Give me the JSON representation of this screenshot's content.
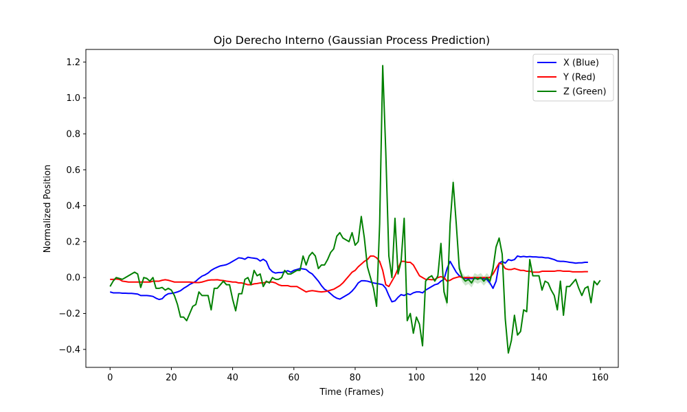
{
  "chart_data": {
    "type": "line",
    "title": "Ojo Derecho Interno (Gaussian Process Prediction)",
    "xlabel": "Time (Frames)",
    "ylabel": "Normalized Position",
    "xlim": [
      -7.9,
      165.9
    ],
    "ylim": [
      -0.5,
      1.27
    ],
    "xticks": [
      0,
      20,
      40,
      60,
      80,
      100,
      120,
      140,
      160
    ],
    "yticks": [
      -0.4,
      -0.2,
      0.0,
      0.2,
      0.4,
      0.6,
      0.8,
      1.0,
      1.2
    ],
    "ytick_labels": [
      "−0.4",
      "−0.2",
      "0.0",
      "0.2",
      "0.4",
      "0.6",
      "0.8",
      "1.0",
      "1.2"
    ],
    "grid": false,
    "legend_position": "top-right",
    "x_count": 159,
    "series": [
      {
        "name": "X (Blue)",
        "color": "#0000ff",
        "values": [
          -0.08,
          -0.085,
          -0.085,
          -0.085,
          -0.087,
          -0.087,
          -0.088,
          -0.088,
          -0.09,
          -0.092,
          -0.1,
          -0.1,
          -0.1,
          -0.102,
          -0.105,
          -0.115,
          -0.122,
          -0.118,
          -0.1,
          -0.09,
          -0.088,
          -0.085,
          -0.08,
          -0.073,
          -0.06,
          -0.05,
          -0.038,
          -0.03,
          -0.02,
          -0.005,
          0.008,
          0.015,
          0.025,
          0.04,
          0.05,
          0.058,
          0.065,
          0.068,
          0.072,
          0.08,
          0.09,
          0.1,
          0.11,
          0.108,
          0.102,
          0.113,
          0.11,
          0.108,
          0.105,
          0.092,
          0.102,
          0.09,
          0.05,
          0.032,
          0.025,
          0.028,
          0.028,
          0.032,
          0.038,
          0.03,
          0.04,
          0.045,
          0.05,
          0.048,
          0.045,
          0.03,
          0.02,
          0.0,
          -0.02,
          -0.045,
          -0.065,
          -0.075,
          -0.09,
          -0.105,
          -0.115,
          -0.12,
          -0.11,
          -0.1,
          -0.09,
          -0.075,
          -0.055,
          -0.03,
          -0.018,
          -0.018,
          -0.02,
          -0.025,
          -0.03,
          -0.033,
          -0.036,
          -0.04,
          -0.06,
          -0.1,
          -0.135,
          -0.13,
          -0.11,
          -0.095,
          -0.1,
          -0.09,
          -0.095,
          -0.085,
          -0.08,
          -0.08,
          -0.085,
          -0.07,
          -0.06,
          -0.05,
          -0.04,
          -0.035,
          -0.02,
          -0.01,
          0.05,
          0.09,
          0.06,
          0.03,
          0.01,
          0.0,
          -0.005,
          -0.005,
          -0.005,
          -0.005,
          -0.005,
          -0.005,
          -0.007,
          -0.01,
          -0.03,
          -0.06,
          -0.02,
          0.08,
          0.09,
          0.08,
          0.1,
          0.095,
          0.1,
          0.12,
          0.115,
          0.118,
          0.115,
          0.117,
          0.115,
          0.115,
          0.113,
          0.113,
          0.11,
          0.11,
          0.105,
          0.1,
          0.092,
          0.09,
          0.09,
          0.088,
          0.085,
          0.083,
          0.08,
          0.082,
          0.082,
          0.085,
          0.085
        ]
      },
      {
        "name": "Y (Red)",
        "color": "#ff0000",
        "values": [
          -0.01,
          -0.01,
          -0.008,
          -0.01,
          -0.02,
          -0.022,
          -0.025,
          -0.025,
          -0.025,
          -0.025,
          -0.025,
          -0.025,
          -0.025,
          -0.025,
          -0.02,
          -0.02,
          -0.02,
          -0.015,
          -0.012,
          -0.015,
          -0.02,
          -0.025,
          -0.025,
          -0.025,
          -0.025,
          -0.025,
          -0.025,
          -0.027,
          -0.028,
          -0.028,
          -0.025,
          -0.02,
          -0.015,
          -0.013,
          -0.013,
          -0.012,
          -0.015,
          -0.017,
          -0.02,
          -0.022,
          -0.025,
          -0.025,
          -0.03,
          -0.03,
          -0.035,
          -0.04,
          -0.04,
          -0.035,
          -0.033,
          -0.03,
          -0.03,
          -0.025,
          -0.025,
          -0.025,
          -0.03,
          -0.04,
          -0.045,
          -0.045,
          -0.045,
          -0.05,
          -0.05,
          -0.05,
          -0.06,
          -0.07,
          -0.08,
          -0.075,
          -0.073,
          -0.075,
          -0.078,
          -0.08,
          -0.078,
          -0.075,
          -0.07,
          -0.065,
          -0.055,
          -0.045,
          -0.03,
          -0.01,
          0.01,
          0.03,
          0.04,
          0.06,
          0.075,
          0.09,
          0.1,
          0.12,
          0.12,
          0.11,
          0.09,
          0.04,
          -0.04,
          -0.05,
          -0.02,
          0.01,
          0.05,
          0.09,
          0.09,
          0.085,
          0.085,
          0.07,
          0.04,
          0.01,
          0.0,
          -0.01,
          -0.01,
          -0.012,
          -0.01,
          0.0,
          0.005,
          0.0,
          -0.02,
          -0.015,
          -0.005,
          0.0,
          0.005,
          0.0,
          0.0,
          0.0,
          0.0,
          0.0,
          0.0,
          0.0,
          0.0,
          0.0,
          0.0,
          0.02,
          0.05,
          0.08,
          0.075,
          0.05,
          0.045,
          0.045,
          0.05,
          0.045,
          0.04,
          0.04,
          0.035,
          0.035,
          0.03,
          0.03,
          0.03,
          0.035,
          0.035,
          0.035,
          0.035,
          0.035,
          0.038,
          0.038,
          0.035,
          0.035,
          0.035,
          0.032,
          0.032,
          0.032,
          0.032,
          0.033,
          0.033
        ]
      },
      {
        "name": "Z (Green)",
        "color": "#008000",
        "values": [
          -0.05,
          -0.02,
          0.0,
          -0.005,
          -0.01,
          0.0,
          0.01,
          0.02,
          0.03,
          0.02,
          -0.055,
          0.0,
          -0.005,
          -0.02,
          0.0,
          -0.06,
          -0.06,
          -0.055,
          -0.07,
          -0.06,
          -0.07,
          -0.1,
          -0.15,
          -0.22,
          -0.22,
          -0.24,
          -0.2,
          -0.16,
          -0.15,
          -0.08,
          -0.1,
          -0.1,
          -0.1,
          -0.18,
          -0.06,
          -0.06,
          -0.04,
          -0.02,
          -0.04,
          -0.04,
          -0.12,
          -0.185,
          -0.09,
          -0.09,
          -0.01,
          0.0,
          -0.04,
          0.04,
          0.01,
          0.02,
          -0.05,
          -0.02,
          -0.03,
          0.0,
          -0.01,
          -0.01,
          0.0,
          0.04,
          0.02,
          0.02,
          0.03,
          0.04,
          0.04,
          0.12,
          0.07,
          0.12,
          0.14,
          0.12,
          0.05,
          0.07,
          0.07,
          0.1,
          0.14,
          0.16,
          0.23,
          0.25,
          0.22,
          0.21,
          0.2,
          0.25,
          0.18,
          0.2,
          0.34,
          0.22,
          0.06,
          0.0,
          -0.06,
          -0.16,
          0.3,
          1.18,
          0.7,
          0.12,
          0.0,
          0.33,
          0.02,
          0.09,
          0.33,
          -0.24,
          -0.2,
          -0.31,
          -0.22,
          -0.26,
          -0.38,
          -0.02,
          0.0,
          0.01,
          -0.02,
          0.01,
          0.19,
          -0.08,
          -0.14,
          0.3,
          0.53,
          0.3,
          0.05,
          0.0,
          -0.02,
          -0.01,
          -0.03,
          0.0,
          -0.01,
          0.0,
          -0.02,
          0.0,
          -0.02,
          0.05,
          0.17,
          0.22,
          0.13,
          -0.23,
          -0.42,
          -0.35,
          -0.21,
          -0.32,
          -0.3,
          -0.18,
          -0.19,
          0.1,
          0.01,
          0.01,
          0.01,
          -0.07,
          -0.02,
          -0.03,
          -0.07,
          -0.1,
          -0.18,
          -0.02,
          -0.21,
          -0.05,
          -0.05,
          -0.03,
          -0.01,
          -0.06,
          -0.1,
          -0.06,
          -0.05,
          -0.14,
          -0.02,
          -0.04,
          -0.015
        ]
      }
    ],
    "uncertainty_band": {
      "series": "Z (Green)",
      "fill": "#008000",
      "x_range": [
        108,
        126
      ],
      "halfwidth": 0.025
    }
  }
}
